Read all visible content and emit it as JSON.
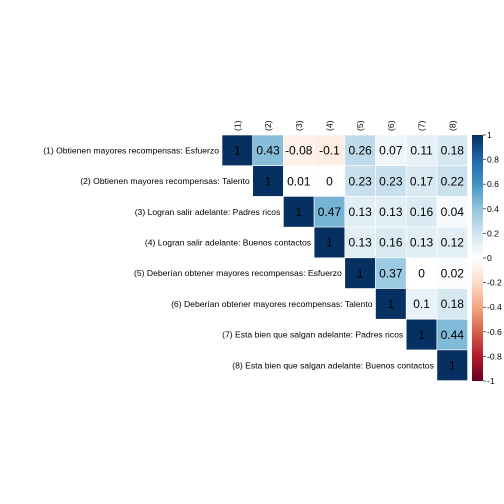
{
  "chart_data": {
    "type": "heatmap",
    "layout": "upper-triangle",
    "row_labels": [
      "(1) Obtienen mayores recompensas: Esfuerzo",
      "(2) Obtienen mayores recompensas: Talento",
      "(3) Logran salir adelante: Padres ricos",
      "(4) Logran salir adelante: Buenos contactos",
      "(5) Deberían obtener mayores recompensas: Esfuerzo",
      "(6) Deberían obtener mayores recompensas: Talento",
      "(7) Esta bien que salgan adelante: Padres ricos",
      "(8) Esta bien que salgan adelante: Buenos contactos"
    ],
    "col_labels": [
      "(1)",
      "(2)",
      "(3)",
      "(4)",
      "(5)",
      "(6)",
      "(7)",
      "(8)"
    ],
    "values": [
      [
        1,
        0.43,
        -0.08,
        -0.1,
        0.26,
        0.07,
        0.11,
        0.18
      ],
      [
        null,
        1,
        0.01,
        0,
        0.23,
        0.23,
        0.17,
        0.22
      ],
      [
        null,
        null,
        1,
        0.47,
        0.13,
        0.13,
        0.16,
        0.04
      ],
      [
        null,
        null,
        null,
        1,
        0.13,
        0.16,
        0.13,
        0.12
      ],
      [
        null,
        null,
        null,
        null,
        1,
        0.37,
        0,
        0.02
      ],
      [
        null,
        null,
        null,
        null,
        null,
        1,
        0.1,
        0.18
      ],
      [
        null,
        null,
        null,
        null,
        null,
        null,
        1,
        0.44
      ],
      [
        null,
        null,
        null,
        null,
        null,
        null,
        null,
        1
      ]
    ],
    "value_labels": [
      [
        "1",
        "0.43",
        "-0.08",
        "-0.1",
        "0.26",
        "0.07",
        "0.11",
        "0.18"
      ],
      [
        null,
        "1",
        "0.01",
        "0",
        "0.23",
        "0.23",
        "0.17",
        "0.22"
      ],
      [
        null,
        null,
        "1",
        "0.47",
        "0.13",
        "0.13",
        "0.16",
        "0.04"
      ],
      [
        null,
        null,
        null,
        "1",
        "0.13",
        "0.16",
        "0.13",
        "0.12"
      ],
      [
        null,
        null,
        null,
        null,
        "1",
        "0.37",
        "0",
        "0.02"
      ],
      [
        null,
        null,
        null,
        null,
        null,
        "1",
        "0.1",
        "0.18"
      ],
      [
        null,
        null,
        null,
        null,
        null,
        null,
        "1",
        "0.44"
      ],
      [
        null,
        null,
        null,
        null,
        null,
        null,
        null,
        "1"
      ]
    ],
    "legend": {
      "range": [
        -1,
        1
      ],
      "placement": "right",
      "ticks": [
        "-1",
        "-0.8",
        "-0.6",
        "-0.4",
        "-0.2",
        "0",
        "0.2",
        "0.4",
        "0.6",
        "0.8",
        "1"
      ],
      "colors": [
        "#67001f",
        "#b2182b",
        "#d6604d",
        "#f4a582",
        "#fddbc7",
        "#ffffff",
        "#d1e5f0",
        "#92c5de",
        "#4393c3",
        "#2166ac",
        "#053061"
      ]
    },
    "title": "",
    "xlabel": "",
    "ylabel": ""
  }
}
